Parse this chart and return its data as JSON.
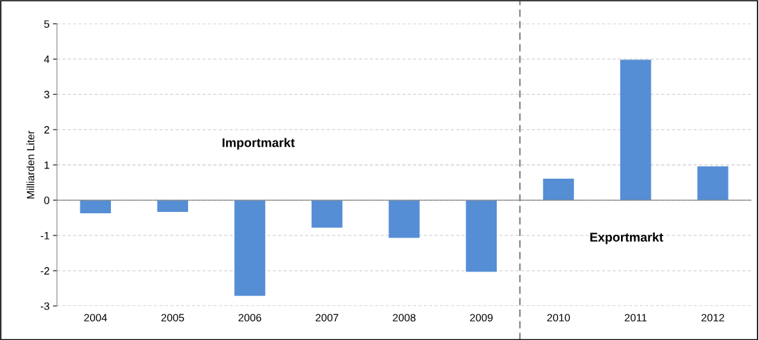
{
  "chart_data": {
    "type": "bar",
    "ylabel": "Milliarden Liter",
    "x": [
      2004,
      2005,
      2006,
      2007,
      2008,
      2009,
      2010,
      2011,
      2012
    ],
    "values": [
      -0.37,
      -0.33,
      -2.71,
      -0.78,
      -1.07,
      -2.03,
      0.61,
      3.98,
      0.96
    ],
    "color": "#558ed5",
    "xlim": [
      2003.5,
      2012.5
    ],
    "xticks": [
      2004,
      2005,
      2006,
      2007,
      2008,
      2009,
      2010,
      2011,
      2012
    ],
    "ylim": [
      -3,
      5
    ],
    "yticks": [
      {
        "value": -3,
        "label": "-3"
      },
      {
        "value": -2,
        "label": "-2"
      },
      {
        "value": -1,
        "label": "-1"
      },
      0,
      1,
      2,
      3,
      4,
      5
    ],
    "grid": "y",
    "ref_lines": [
      {
        "axis": "x",
        "value": 2009.5,
        "color": "#7f7f7f",
        "line_style": "dashed"
      }
    ],
    "annotations": [
      "Importmarkt",
      "Exportmarkt"
    ]
  }
}
